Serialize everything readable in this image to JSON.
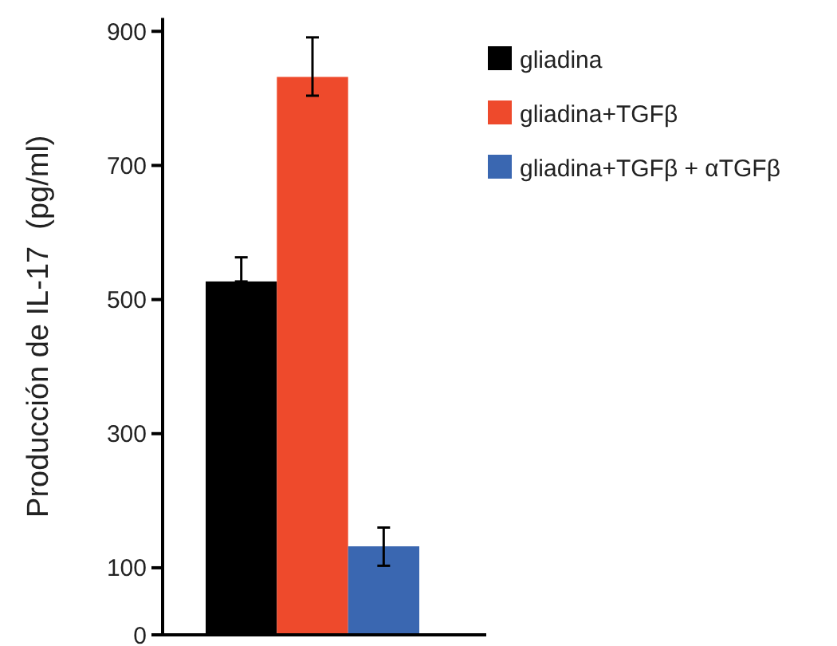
{
  "chart_data": {
    "type": "bar",
    "ylabel": "Producción de IL-17  (pg/ml)",
    "categories": [
      null
    ],
    "series": [
      {
        "name": "gliadina",
        "color": "#000000",
        "values": [
          527
        ],
        "errors": [
          [
            527,
            563
          ]
        ]
      },
      {
        "name": "gliadina+TGFβ",
        "color": "#ee4a2c",
        "values": [
          832
        ],
        "errors": [
          [
            804,
            891
          ]
        ]
      },
      {
        "name": "gliadina+TGFβ + αTGFβ",
        "color": "#3a67b1",
        "values": [
          132
        ],
        "errors": [
          [
            103,
            160
          ]
        ]
      }
    ],
    "ylim": [
      0,
      920
    ],
    "yticks": [
      0,
      100,
      300,
      500,
      700,
      900
    ],
    "grid": false,
    "legend": "top right"
  }
}
